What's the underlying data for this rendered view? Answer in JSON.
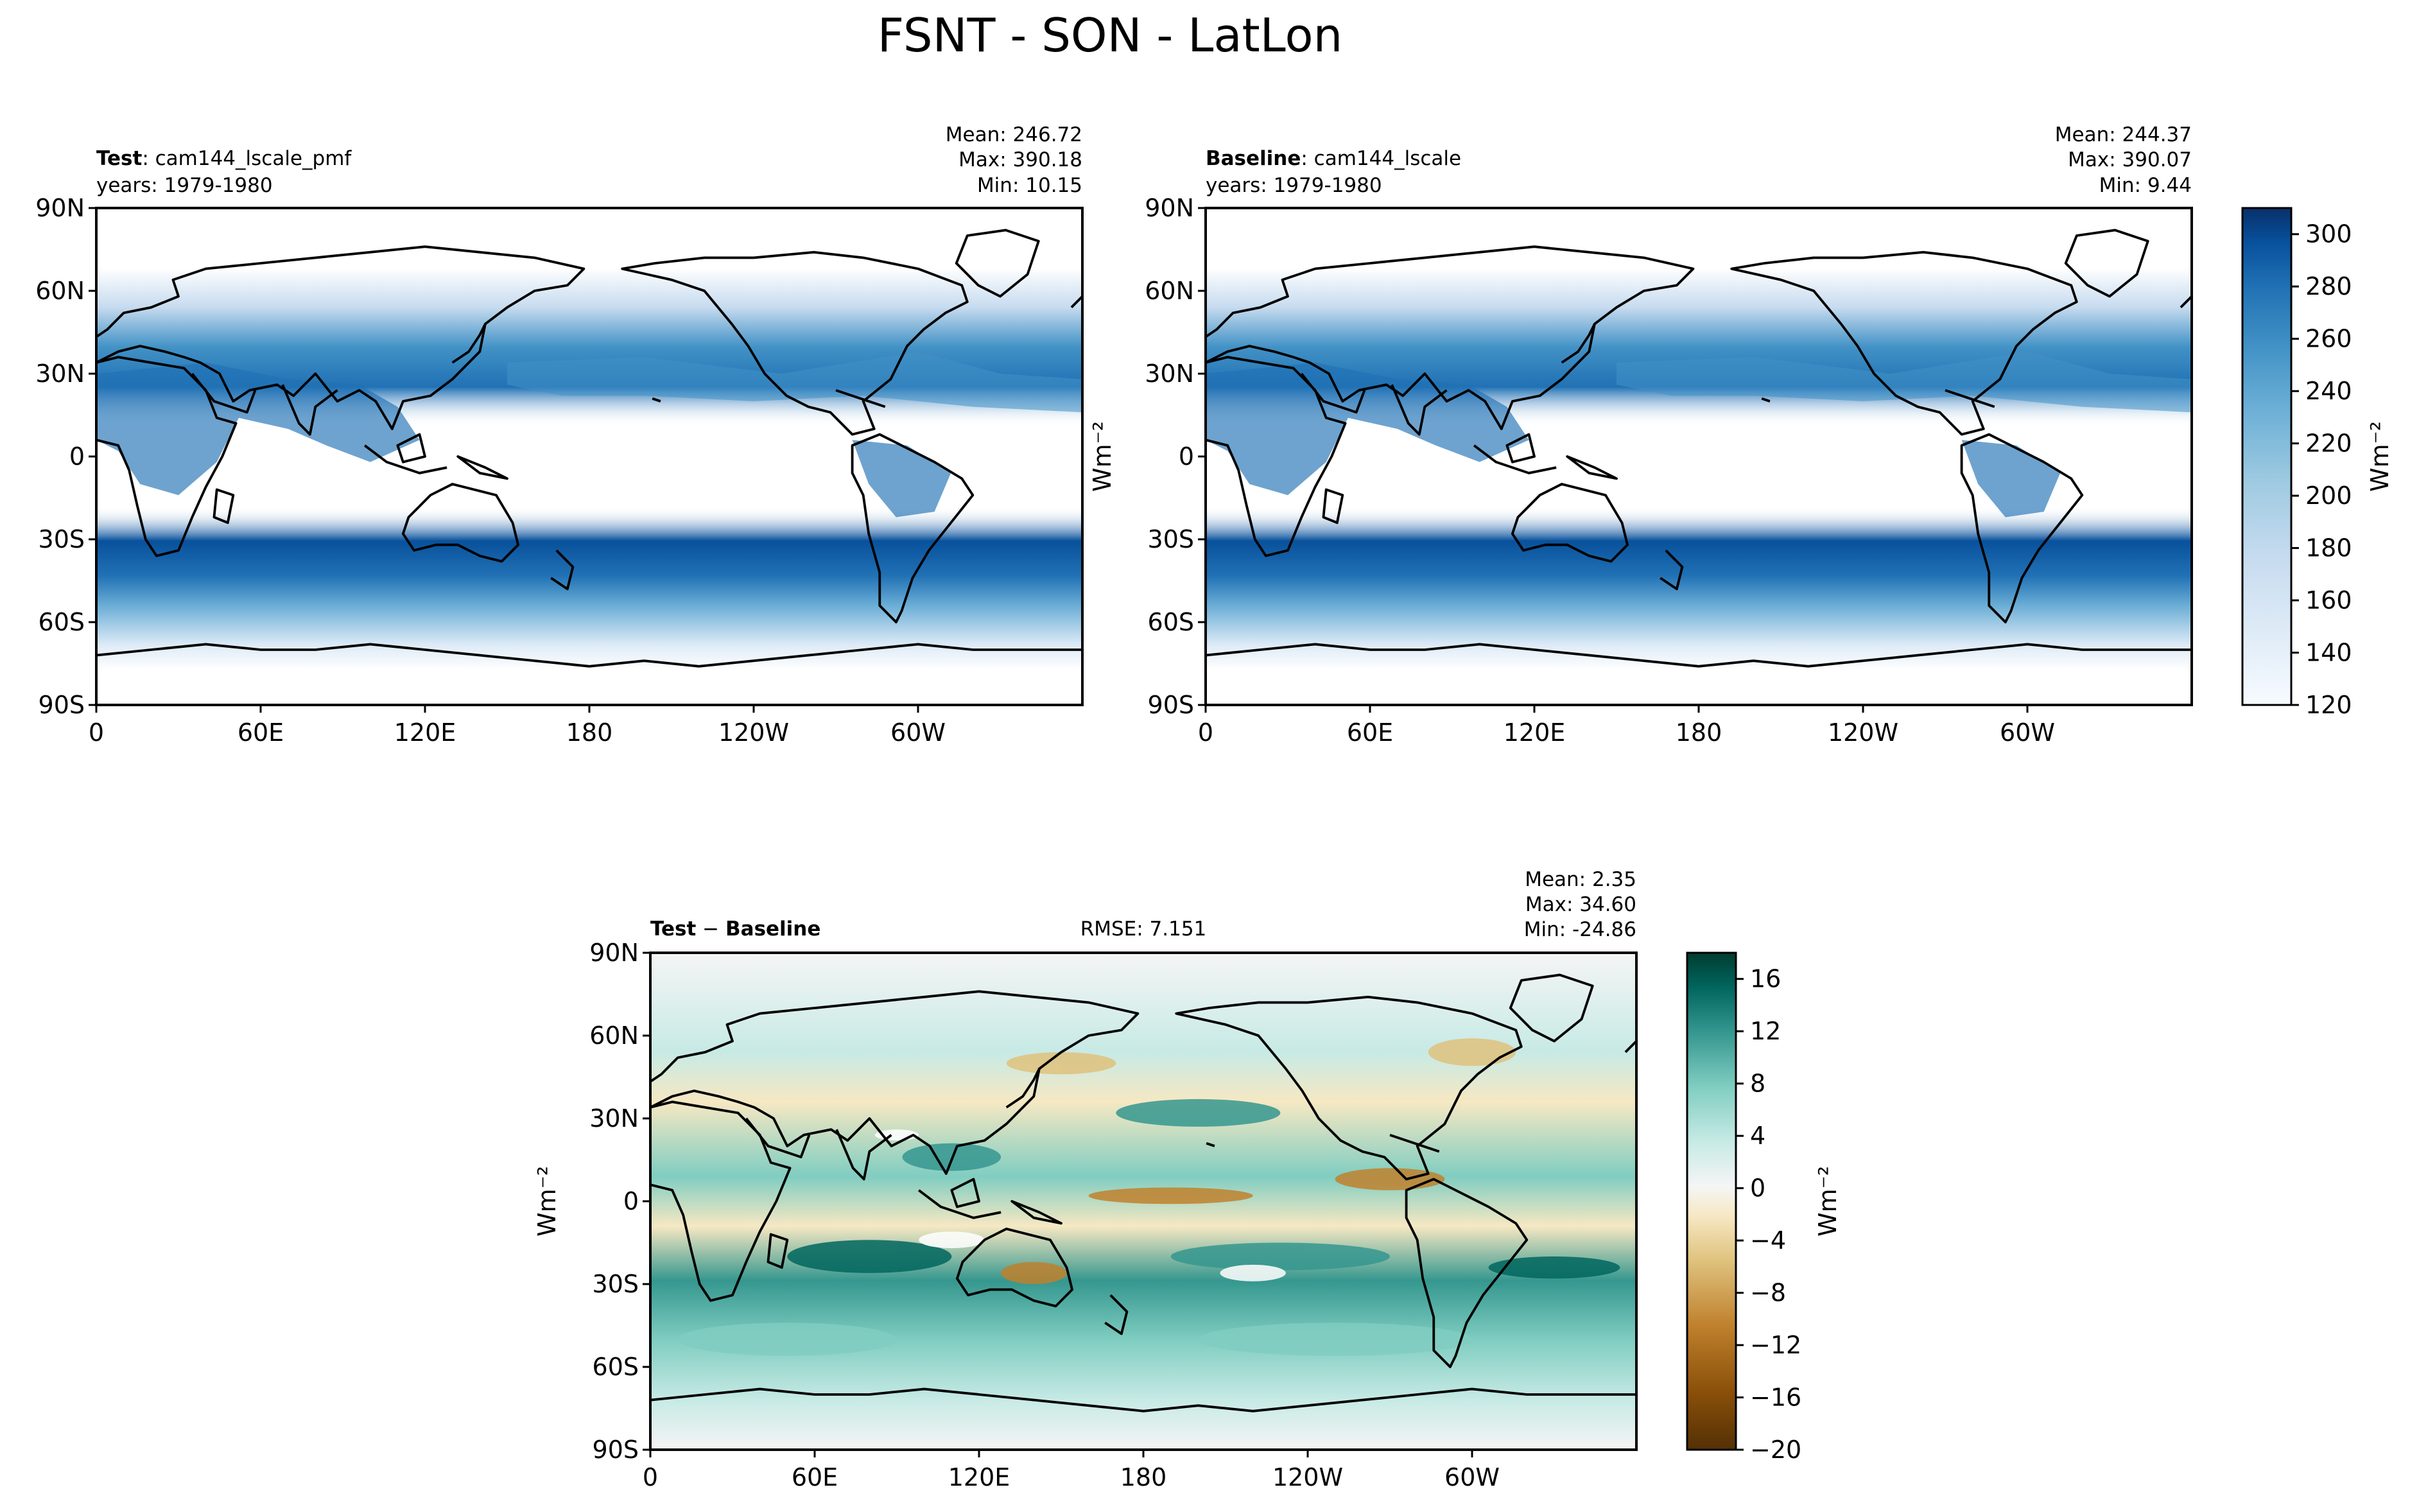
{
  "suptitle": "FSNT - SON - LatLon",
  "panels": {
    "test": {
      "label_bold": "Test",
      "label_rest": ": cam144_lscale_pmf",
      "years": "years: 1979-1980",
      "mean": "Mean: 246.72",
      "max": "Max: 390.18",
      "min": "Min: 10.15"
    },
    "baseline": {
      "label_bold": "Baseline",
      "label_rest": ": cam144_lscale",
      "years": "years: 1979-1980",
      "mean": "Mean: 244.37",
      "max": "Max: 390.07",
      "min": "Min:  9.44"
    },
    "diff": {
      "label_bold_a": "Test",
      "label_minus": " − ",
      "label_bold_b": "Baseline",
      "rmse": "RMSE: 7.151",
      "mean": "Mean:  2.35",
      "max": "Max: 34.60",
      "min": "Min: -24.86"
    }
  },
  "units_label": "Wm⁻²",
  "chart_data": [
    {
      "type": "heatmap",
      "title": "Test: cam144_lscale_pmf",
      "variable": "FSNT",
      "season": "SON",
      "x_ticks": [
        "0",
        "60E",
        "120E",
        "180",
        "120W",
        "60W"
      ],
      "x_tick_values": [
        0,
        60,
        120,
        180,
        240,
        300
      ],
      "xlim": [
        0,
        360
      ],
      "y_ticks": [
        "90N",
        "60N",
        "30N",
        "0",
        "30S",
        "60S",
        "90S"
      ],
      "y_tick_values": [
        90,
        60,
        30,
        0,
        -30,
        -60,
        -90
      ],
      "ylim": [
        -90,
        90
      ],
      "colormap": "Blues",
      "colorbar_ticks": [
        120,
        140,
        160,
        180,
        200,
        220,
        240,
        260,
        280,
        300
      ],
      "colorbar_range": [
        120,
        310
      ],
      "colorbar_label": "Wm⁻²",
      "stats": {
        "mean": 246.72,
        "max": 390.18,
        "min": 10.15
      }
    },
    {
      "type": "heatmap",
      "title": "Baseline: cam144_lscale",
      "variable": "FSNT",
      "season": "SON",
      "x_ticks": [
        "0",
        "60E",
        "120E",
        "180",
        "120W",
        "60W"
      ],
      "x_tick_values": [
        0,
        60,
        120,
        180,
        240,
        300
      ],
      "xlim": [
        0,
        360
      ],
      "y_ticks": [
        "90N",
        "60N",
        "30N",
        "0",
        "30S",
        "60S",
        "90S"
      ],
      "y_tick_values": [
        90,
        60,
        30,
        0,
        -30,
        -60,
        -90
      ],
      "ylim": [
        -90,
        90
      ],
      "colormap": "Blues",
      "colorbar_ticks": [
        120,
        140,
        160,
        180,
        200,
        220,
        240,
        260,
        280,
        300
      ],
      "colorbar_range": [
        120,
        310
      ],
      "colorbar_label": "Wm⁻²",
      "stats": {
        "mean": 244.37,
        "max": 390.07,
        "min": 9.44
      }
    },
    {
      "type": "heatmap",
      "title": "Test − Baseline",
      "variable": "FSNT",
      "season": "SON",
      "x_ticks": [
        "0",
        "60E",
        "120E",
        "180",
        "120W",
        "60W"
      ],
      "x_tick_values": [
        0,
        60,
        120,
        180,
        240,
        300
      ],
      "xlim": [
        0,
        360
      ],
      "y_ticks": [
        "90N",
        "60N",
        "30N",
        "0",
        "30S",
        "60S",
        "90S"
      ],
      "y_tick_values": [
        90,
        60,
        30,
        0,
        -30,
        -60,
        -90
      ],
      "ylim": [
        -90,
        90
      ],
      "colormap": "BrBG",
      "colorbar_ticks": [
        -20,
        -16,
        -12,
        -8,
        -4,
        0,
        4,
        8,
        12,
        16
      ],
      "colorbar_range": [
        -20,
        18
      ],
      "colorbar_label": "Wm⁻²",
      "rmse": 7.151,
      "stats": {
        "mean": 2.35,
        "max": 34.6,
        "min": -24.86
      }
    }
  ],
  "colors": {
    "blues": [
      "#f7fbff",
      "#deebf7",
      "#c6dbef",
      "#9ecae1",
      "#6baed6",
      "#4292c6",
      "#2171b5",
      "#08519c",
      "#08306b"
    ],
    "brbg": [
      "#543005",
      "#8c510a",
      "#bf812d",
      "#dfc27d",
      "#f6e8c3",
      "#f5f5f5",
      "#c7eae5",
      "#80cdc1",
      "#35978f",
      "#01665e",
      "#003c30"
    ],
    "land_outline": "#000000"
  }
}
